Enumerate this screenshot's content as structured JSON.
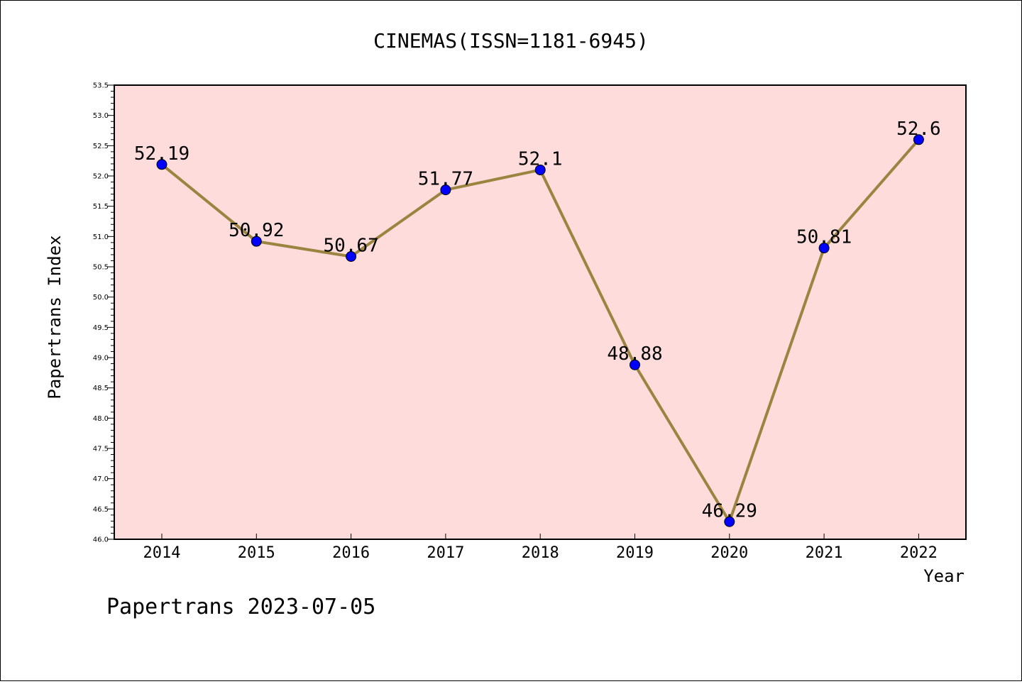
{
  "chart_data": {
    "type": "line",
    "title": "CINEMAS(ISSN=1181-6945)",
    "xlabel": "Year",
    "ylabel": "Papertrans Index",
    "categories": [
      "2014",
      "2015",
      "2016",
      "2017",
      "2018",
      "2019",
      "2020",
      "2021",
      "2022"
    ],
    "values": [
      52.19,
      50.92,
      50.67,
      51.77,
      52.1,
      48.88,
      46.29,
      50.81,
      52.6
    ],
    "data_labels": [
      "52.19",
      "50.92",
      "50.67",
      "51.77",
      "52.1",
      "48.88",
      "46.29",
      "50.81",
      "52.6"
    ],
    "ylim": [
      46.0,
      53.5
    ],
    "yticks": [
      "46.0",
      "46.5",
      "47.0",
      "47.5",
      "48.0",
      "48.5",
      "49.0",
      "49.5",
      "50.0",
      "50.5",
      "51.0",
      "51.5",
      "52.0",
      "52.5",
      "53.0",
      "53.5"
    ],
    "grid": false,
    "legend": "none",
    "plot_background": "#ffdcdc",
    "line_color": "#9b8440",
    "marker_color": "#0000ff"
  },
  "footer": "Papertrans 2023-07-05"
}
